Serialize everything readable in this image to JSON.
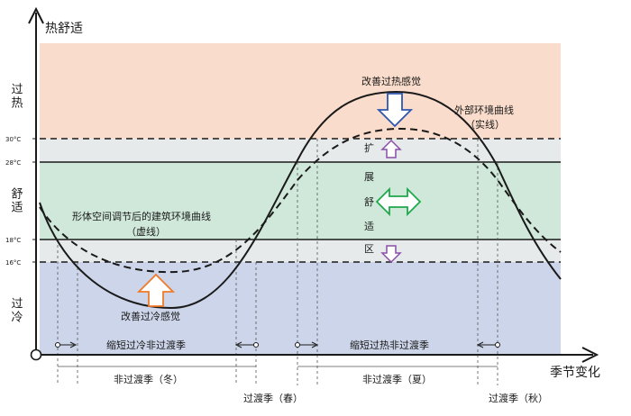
{
  "axes": {
    "y_label": "热舒适",
    "x_label": "季节变化"
  },
  "zones": {
    "hot": {
      "label": "过热",
      "color": "#f9dccb"
    },
    "comfort": {
      "label": "舒适",
      "color": "#cfe8da"
    },
    "cold": {
      "label": "过冷",
      "color": "#ccd5e9"
    },
    "extended": {
      "color": "#e7eaea"
    }
  },
  "temperature_ticks": [
    "30°C",
    "28°C",
    "18°C",
    "16°C"
  ],
  "curves": {
    "outer": {
      "label_line1": "外部环境曲线",
      "label_line2": "（实线）"
    },
    "inner": {
      "label_line1": "形体空间调节后的建筑环境曲线",
      "label_line2": "（虚线）"
    }
  },
  "annotations": {
    "improve_overheat": "改善过热感觉",
    "improve_overcool": "改善过冷感觉",
    "expand_zone": [
      "扩",
      "展",
      "舒",
      "适",
      "区"
    ]
  },
  "transitions": {
    "shorten_cold": "缩短过冷非过渡季",
    "shorten_hot": "缩短过热非过渡季"
  },
  "seasons": {
    "winter": "非过渡季（冬）",
    "spring": "过渡季（春）",
    "summer": "非过渡季（夏）",
    "autumn": "过渡季（秋）"
  },
  "colors": {
    "arrow_blue": "#2e56b0",
    "arrow_orange": "#f07a2a",
    "arrow_purple": "#8a4fa8",
    "arrow_green": "#1ea84a",
    "ink": "#1a1a1a"
  }
}
